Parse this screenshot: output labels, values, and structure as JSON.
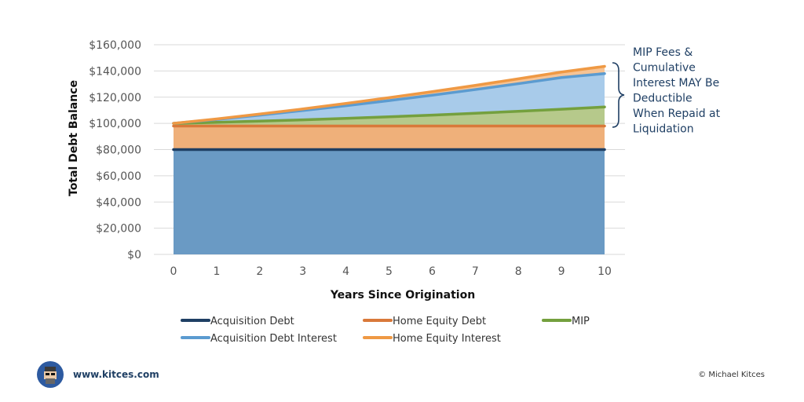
{
  "chart_data": {
    "type": "area",
    "x": [
      0,
      1,
      2,
      3,
      4,
      5,
      6,
      7,
      8,
      9,
      10
    ],
    "xlabel": "Years Since Origination",
    "ylabel": "Total Debt Balance",
    "ylim": [
      0,
      160000
    ],
    "yticks": [
      "$0",
      "$20,000",
      "$40,000",
      "$60,000",
      "$80,000",
      "$100,000",
      "$120,000",
      "$140,000",
      "$160,000"
    ],
    "xticks": [
      "0",
      "1",
      "2",
      "3",
      "4",
      "5",
      "6",
      "7",
      "8",
      "9",
      "10"
    ],
    "grid": true,
    "stacked": true,
    "series": [
      {
        "name": "Acquisition Debt",
        "values": [
          80000,
          80000,
          80000,
          80000,
          80000,
          80000,
          80000,
          80000,
          80000,
          80000,
          80000
        ],
        "fill": "#6a9ac4",
        "line": "#1f3f64"
      },
      {
        "name": "Home Equity Debt",
        "values": [
          18000,
          18000,
          18000,
          18000,
          18000,
          18000,
          18000,
          18000,
          18000,
          18000,
          18000
        ],
        "fill": "#efb07a",
        "line": "#d9793a"
      },
      {
        "name": "MIP",
        "values": [
          2000,
          2800,
          3700,
          4700,
          5800,
          7000,
          8300,
          9700,
          11200,
          12800,
          14500
        ],
        "fill": "#b6c98b",
        "line": "#74a03e"
      },
      {
        "name": "Acquisition Debt Interest",
        "values": [
          0,
          2200,
          4600,
          7100,
          9700,
          12400,
          15200,
          18100,
          21100,
          24200,
          25500
        ],
        "fill": "#a8cbea",
        "line": "#5b9bd0"
      },
      {
        "name": "Home Equity Interest",
        "values": [
          0,
          400,
          800,
          1200,
          1700,
          2200,
          2700,
          3200,
          3700,
          4200,
          5500
        ],
        "fill": "#f6c394",
        "line": "#ef9944"
      }
    ],
    "legend_position": "bottom"
  },
  "annotation": {
    "lines": [
      "MIP Fees &",
      "Cumulative",
      "Interest MAY Be",
      "Deductible",
      "When Repaid at",
      "Liquidation"
    ]
  },
  "footer": {
    "url": "www.kitces.com",
    "copyright": "© Michael Kitces"
  }
}
